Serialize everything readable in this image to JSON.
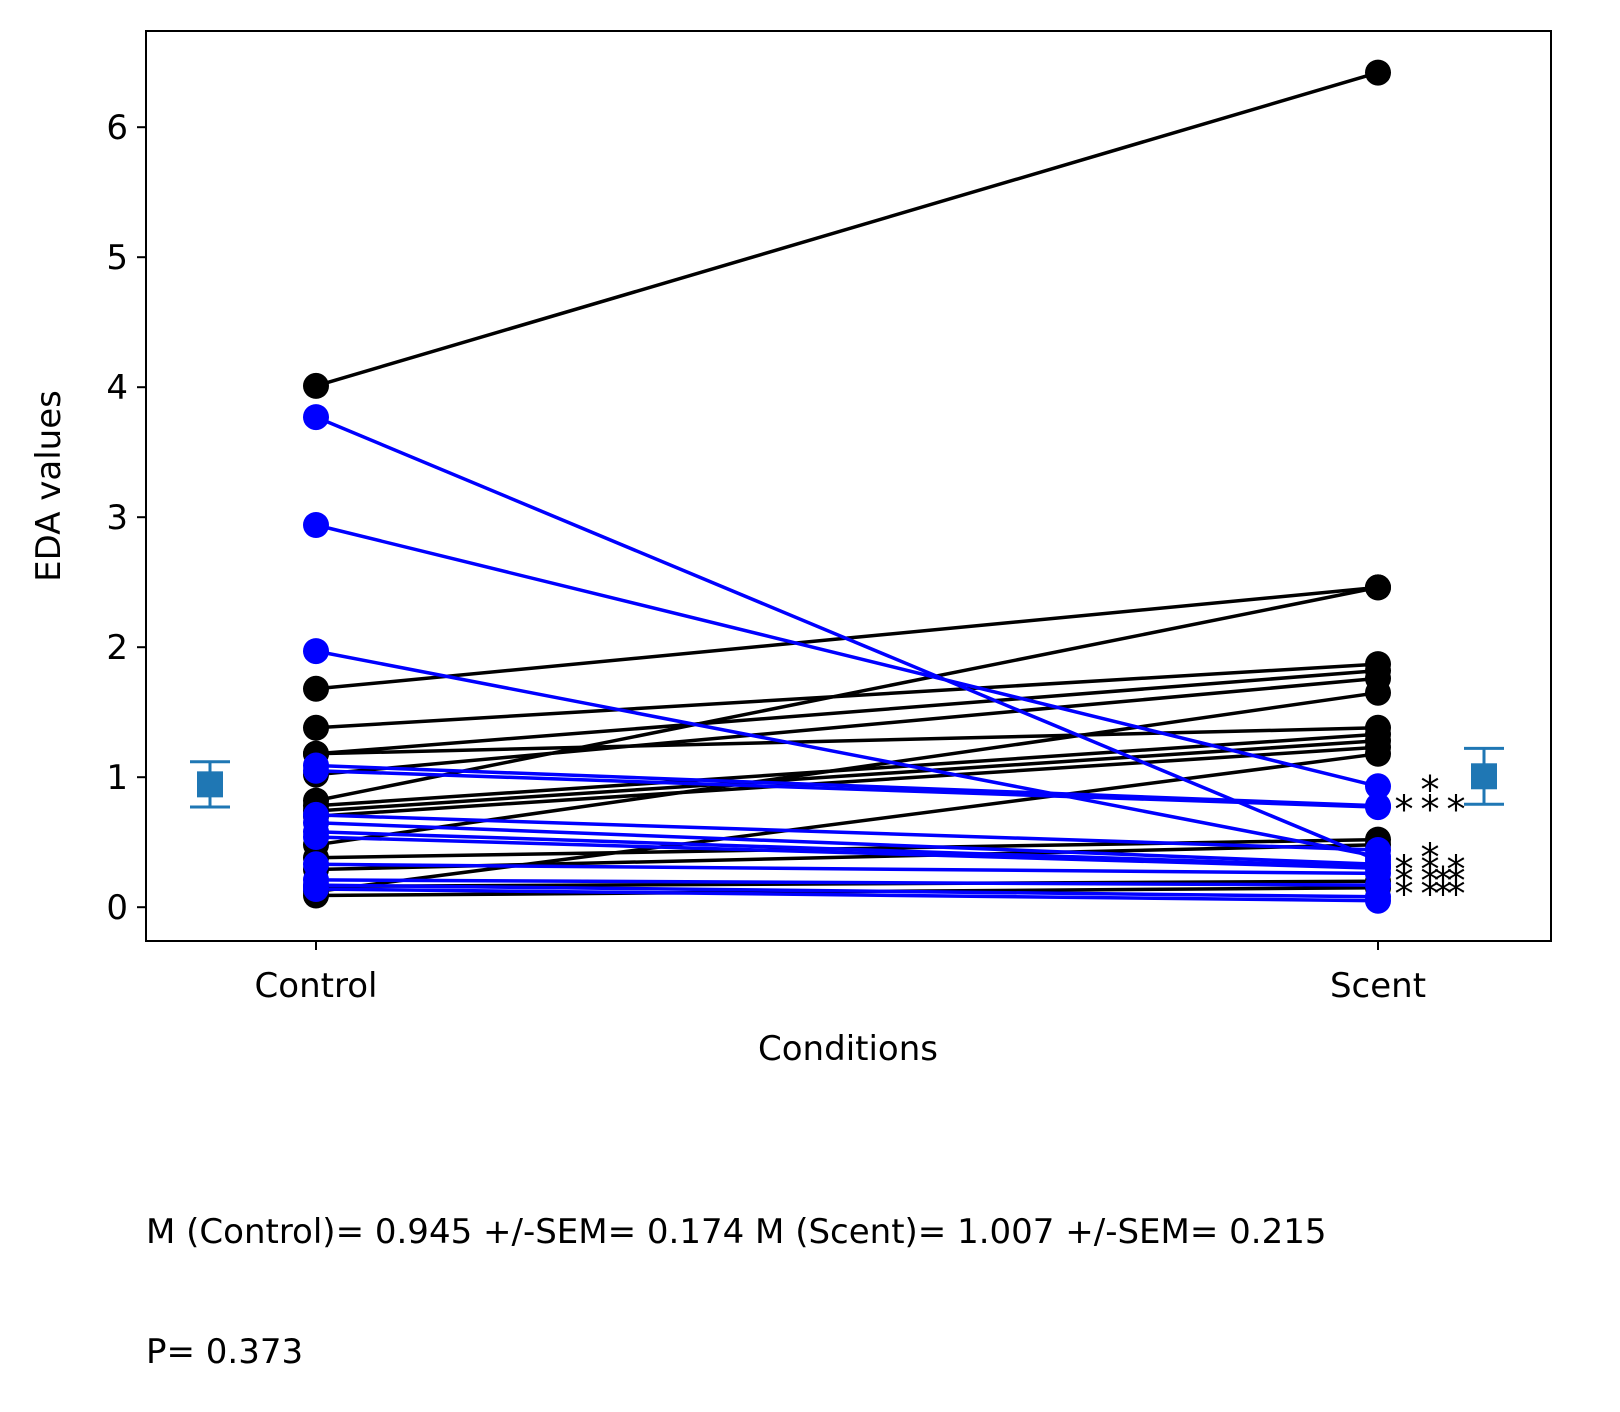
{
  "chart_data": {
    "type": "line",
    "xlabel": "Conditions",
    "ylabel": "EDA values",
    "categories": [
      "Control",
      "Scent"
    ],
    "ylim": [
      -0.26,
      6.74
    ],
    "yticks": [
      0,
      1,
      2,
      3,
      4,
      5,
      6
    ],
    "grid": false,
    "colors": {
      "increase": "#000000",
      "decrease": "#0000ff",
      "mean": "#1f77b4"
    },
    "pairs": [
      {
        "control": 4.01,
        "scent": 6.42,
        "dir": "up"
      },
      {
        "control": 1.68,
        "scent": 2.46,
        "dir": "up"
      },
      {
        "control": 0.82,
        "scent": 2.46,
        "dir": "up"
      },
      {
        "control": 1.38,
        "scent": 1.87,
        "dir": "up"
      },
      {
        "control": 1.18,
        "scent": 1.82,
        "dir": "up"
      },
      {
        "control": 1.02,
        "scent": 1.76,
        "dir": "up"
      },
      {
        "control": 0.48,
        "scent": 1.65,
        "dir": "up"
      },
      {
        "control": 1.18,
        "scent": 1.38,
        "dir": "up"
      },
      {
        "control": 0.78,
        "scent": 1.33,
        "dir": "up"
      },
      {
        "control": 0.74,
        "scent": 1.28,
        "dir": "up"
      },
      {
        "control": 0.7,
        "scent": 1.23,
        "dir": "up"
      },
      {
        "control": 0.12,
        "scent": 1.18,
        "dir": "up"
      },
      {
        "control": 0.38,
        "scent": 0.52,
        "dir": "up"
      },
      {
        "control": 0.29,
        "scent": 0.48,
        "dir": "up"
      },
      {
        "control": 0.16,
        "scent": 0.2,
        "dir": "up"
      },
      {
        "control": 0.09,
        "scent": 0.15,
        "dir": "up"
      },
      {
        "control": 3.77,
        "scent": 0.36,
        "dir": "down"
      },
      {
        "control": 2.94,
        "scent": 0.93,
        "dir": "down"
      },
      {
        "control": 1.97,
        "scent": 0.39,
        "dir": "down"
      },
      {
        "control": 1.09,
        "scent": 0.78,
        "dir": "down"
      },
      {
        "control": 1.05,
        "scent": 0.77,
        "dir": "down"
      },
      {
        "control": 0.71,
        "scent": 0.44,
        "dir": "down"
      },
      {
        "control": 0.65,
        "scent": 0.33,
        "dir": "down"
      },
      {
        "control": 0.58,
        "scent": 0.31,
        "dir": "down"
      },
      {
        "control": 0.54,
        "scent": 0.3,
        "dir": "down"
      },
      {
        "control": 0.33,
        "scent": 0.26,
        "dir": "down"
      },
      {
        "control": 0.21,
        "scent": 0.17,
        "dir": "down"
      },
      {
        "control": 0.17,
        "scent": 0.08,
        "dir": "down"
      },
      {
        "control": 0.14,
        "scent": 0.05,
        "dir": "down"
      }
    ],
    "means": [
      {
        "condition": "Control",
        "mean": 0.945,
        "sem": 0.174
      },
      {
        "condition": "Scent",
        "mean": 1.007,
        "sem": 0.215
      }
    ],
    "annotations": [
      {
        "text": "*",
        "y": 0.97
      },
      {
        "text": "*",
        "y": 0.82
      },
      {
        "text": "*",
        "y": 0.82
      },
      {
        "text": "*",
        "y": 0.82
      },
      {
        "text": "*",
        "y": 0.45
      },
      {
        "text": "*",
        "y": 0.36
      },
      {
        "text": "*",
        "y": 0.36
      },
      {
        "text": "*",
        "y": 0.36
      },
      {
        "text": "*",
        "y": 0.27
      },
      {
        "text": "*",
        "y": 0.27
      },
      {
        "text": "*",
        "y": 0.27
      },
      {
        "text": "*",
        "y": 0.27
      },
      {
        "text": "*",
        "y": 0.17
      },
      {
        "text": "*",
        "y": 0.17
      },
      {
        "text": "*",
        "y": 0.17
      },
      {
        "text": "*",
        "y": 0.17
      }
    ]
  },
  "stats": {
    "line1": "M (Control)= 0.945 +/-SEM= 0.174 M (Scent)= 1.007 +/-SEM= 0.215",
    "line2": "P= 0.373"
  }
}
